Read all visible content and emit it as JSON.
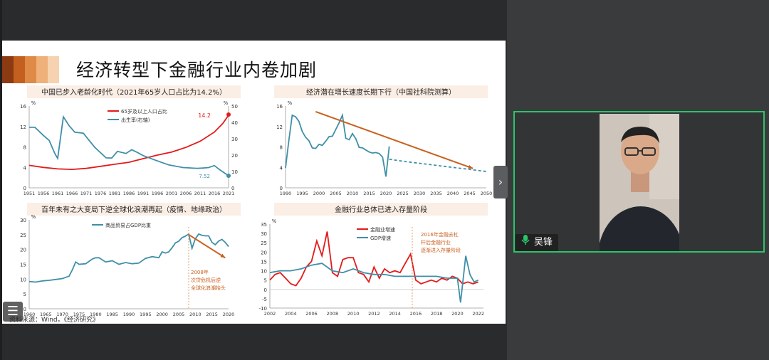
{
  "slide": {
    "title": "经济转型下金融行业内卷加剧",
    "source": "资料来源：Wind，《经济研究》",
    "header_colors": [
      "#8b3a12",
      "#c4601f",
      "#e08a48",
      "#f0b07a",
      "#f7d2b0"
    ]
  },
  "participant": {
    "name": "吴锋"
  },
  "chart_data": [
    {
      "type": "line",
      "title": "中国已步入老龄化时代（2021年65岁人口占比为14.2%）",
      "x_ticks": [
        "1951",
        "1956",
        "1961",
        "1966",
        "1971",
        "1976",
        "1981",
        "1986",
        "1991",
        "1996",
        "2001",
        "2006",
        "2011",
        "2016",
        "2021"
      ],
      "y_left": {
        "unit": "%",
        "ticks": [
          0,
          4,
          8,
          12,
          16
        ],
        "lim": [
          0,
          16
        ]
      },
      "y_right": {
        "unit": "%",
        "ticks": [
          0,
          10,
          20,
          30,
          40,
          50
        ],
        "lim": [
          0,
          50
        ]
      },
      "series": [
        {
          "name": "65岁及以上人口占比",
          "color": "#e21b1b",
          "axis": "left",
          "x": [
            1951,
            1956,
            1961,
            1966,
            1971,
            1976,
            1981,
            1986,
            1991,
            1996,
            2001,
            2006,
            2011,
            2016,
            2019,
            2021
          ],
          "y": [
            4.4,
            4.0,
            3.7,
            3.6,
            3.8,
            4.2,
            4.6,
            5.0,
            5.7,
            6.4,
            7.0,
            7.9,
            9.1,
            10.9,
            12.6,
            14.2
          ]
        },
        {
          "name": "出生率(右轴)",
          "color": "#3f8fa8",
          "axis": "right",
          "x": [
            1951,
            1953,
            1956,
            1958,
            1960,
            1961,
            1963,
            1965,
            1967,
            1970,
            1974,
            1978,
            1980,
            1982,
            1985,
            1987,
            1989,
            1991,
            1995,
            2000,
            2005,
            2010,
            2012,
            2014,
            2016,
            2018,
            2020,
            2021
          ],
          "y": [
            37.0,
            37.0,
            32.0,
            29.0,
            21.0,
            18.0,
            43.4,
            38.0,
            34.0,
            33.4,
            24.8,
            18.3,
            18.2,
            22.3,
            21.0,
            23.3,
            21.6,
            19.7,
            17.1,
            14.0,
            12.4,
            11.9,
            12.1,
            12.4,
            13.6,
            10.9,
            8.5,
            7.52
          ]
        }
      ],
      "annotations": [
        "14.2",
        "7.52"
      ]
    },
    {
      "type": "line",
      "title": "经济潜在增长速度长期下行（中国社科院测算）",
      "x_ticks": [
        "1990",
        "1995",
        "2000",
        "2005",
        "2010",
        "2015",
        "2020",
        "2025",
        "2030",
        "2035",
        "2040",
        "2045",
        "2050"
      ],
      "y_left": {
        "unit": "%",
        "ticks": [
          0,
          4,
          8,
          12,
          16
        ],
        "lim": [
          0,
          16
        ]
      },
      "series": [
        {
          "name": "",
          "color": "#3f8fa8",
          "x": [
            1990,
            1991,
            1992,
            1993,
            1994,
            1995,
            1996,
            1997,
            1998,
            1999,
            2000,
            2001,
            2002,
            2003,
            2004,
            2005,
            2006,
            2007,
            2008,
            2009,
            2010,
            2011,
            2012,
            2013,
            2014,
            2015,
            2016,
            2017,
            2018,
            2019,
            2020,
            2021
          ],
          "y": [
            3.9,
            9.3,
            14.2,
            13.9,
            13.0,
            11.0,
            9.9,
            9.2,
            7.8,
            7.7,
            8.5,
            8.3,
            9.1,
            10.0,
            10.1,
            11.4,
            12.7,
            14.2,
            9.7,
            9.4,
            10.6,
            9.6,
            7.9,
            7.8,
            7.4,
            7.0,
            6.8,
            6.9,
            6.7,
            6.0,
            2.2,
            8.1
          ]
        },
        {
          "name": "",
          "color": "#3f8fa8",
          "dashed": true,
          "x": [
            2021,
            2025,
            2030,
            2035,
            2040,
            2045,
            2050
          ],
          "y": [
            5.6,
            5.2,
            4.8,
            4.4,
            4.0,
            3.6,
            3.2
          ]
        },
        {
          "name": "",
          "color": "#c8601e",
          "arrow": true,
          "x": [
            1999,
            2046
          ],
          "y": [
            14.9,
            3.8
          ]
        }
      ]
    },
    {
      "type": "line",
      "title": "百年未有之大变局下逆全球化浪潮再起（疫情、地缘政治）",
      "x_ticks": [
        "1960",
        "1965",
        "1970",
        "1975",
        "1980",
        "1985",
        "1990",
        "1995",
        "2000",
        "2005",
        "2010",
        "2015",
        "2020"
      ],
      "y_left": {
        "unit": "%",
        "ticks": [
          0,
          5,
          10,
          15,
          20,
          25,
          30
        ],
        "lim": [
          0,
          30
        ]
      },
      "series": [
        {
          "name": "商品贸易占GDP比重",
          "color": "#3f8fa8",
          "x": [
            1960,
            1962,
            1964,
            1966,
            1968,
            1970,
            1972,
            1973,
            1974,
            1975,
            1977,
            1979,
            1980,
            1981,
            1983,
            1985,
            1987,
            1989,
            1991,
            1993,
            1995,
            1997,
            1999,
            2000,
            2001,
            2002,
            2003,
            2004,
            2005,
            2006,
            2007,
            2008,
            2009,
            2010,
            2011,
            2012,
            2013,
            2014,
            2015,
            2016,
            2017,
            2018,
            2019,
            2020
          ],
          "y": [
            9.2,
            9.0,
            9.4,
            9.6,
            9.9,
            10.2,
            11.0,
            13.2,
            15.8,
            15.0,
            15.2,
            16.8,
            17.2,
            17.2,
            15.8,
            16.2,
            15.0,
            15.6,
            15.2,
            15.4,
            17.0,
            17.6,
            17.2,
            19.2,
            18.8,
            19.2,
            20.6,
            22.2,
            22.8,
            24.0,
            24.5,
            25.2,
            20.4,
            23.6,
            25.2,
            24.8,
            24.6,
            24.6,
            22.4,
            21.6,
            22.8,
            23.4,
            22.4,
            21.0
          ]
        },
        {
          "name": "",
          "color": "#c8601e",
          "arrow": true,
          "x": [
            2008,
            2019
          ],
          "y": [
            25.0,
            17.2
          ]
        }
      ],
      "annotations": [
        "2008年次贷危机后逆全球化浪潮抬头"
      ]
    },
    {
      "type": "line",
      "title": "金融行业总体已进入存量阶段",
      "x_ticks": [
        "2002",
        "2004",
        "2006",
        "2008",
        "2010",
        "2012",
        "2014",
        "2016",
        "2018",
        "2020",
        "2022"
      ],
      "y_left": {
        "unit": "%",
        "ticks": [
          -10,
          -5,
          0,
          5,
          10,
          15,
          20,
          25,
          30,
          35
        ],
        "lim": [
          -10,
          35
        ]
      },
      "series": [
        {
          "name": "金融业增速",
          "color": "#e21b1b",
          "x": [
            2002,
            2002.5,
            2003,
            2003.5,
            2004,
            2004.5,
            2005,
            2005.5,
            2006,
            2006.5,
            2007,
            2007.5,
            2008,
            2008.5,
            2009,
            2009.5,
            2010,
            2010.5,
            2011,
            2011.5,
            2012,
            2012.5,
            2013,
            2013.5,
            2014,
            2014.5,
            2015,
            2015.5,
            2016,
            2016.5,
            2017,
            2017.5,
            2018,
            2018.5,
            2019,
            2019.5,
            2020,
            2020.5,
            2021,
            2021.5,
            2022
          ],
          "y": [
            5,
            8,
            9,
            6,
            3,
            2,
            6,
            12,
            15,
            26,
            18,
            31,
            9,
            7,
            16,
            17,
            17,
            9,
            8,
            4,
            12,
            6,
            11,
            9,
            10,
            9,
            14,
            19,
            5,
            3,
            4,
            5,
            4,
            6,
            5,
            7,
            6,
            3,
            4,
            3,
            4
          ]
        },
        {
          "name": "GDP增速",
          "color": "#3f8fa8",
          "x": [
            2002,
            2003,
            2004,
            2005,
            2006,
            2007,
            2008,
            2009,
            2010,
            2011,
            2012,
            2013,
            2014,
            2015,
            2016,
            2017,
            2018,
            2019,
            2020,
            2020.3,
            2020.8,
            2021.2,
            2021.6,
            2022
          ],
          "y": [
            9,
            10,
            10,
            11,
            13,
            14,
            10,
            9,
            11,
            9,
            8,
            8,
            7,
            7,
            7,
            7,
            7,
            6,
            6,
            -7,
            18,
            8,
            4,
            5
          ]
        }
      ],
      "annotations": [
        "2016年金融去杠杆后金融行业逐渐进入存量阶段"
      ]
    }
  ]
}
